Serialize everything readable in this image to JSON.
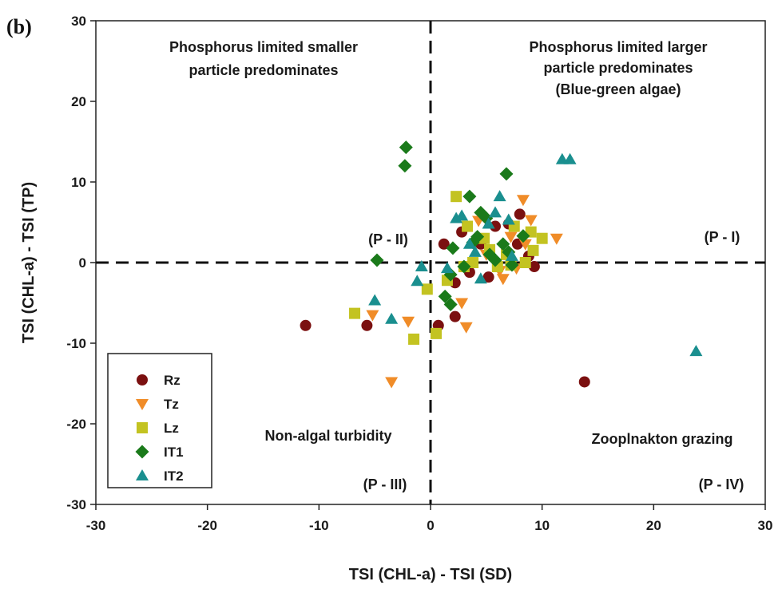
{
  "chart_data": {
    "type": "scatter",
    "panel_label": "(b)",
    "xlabel": "TSI (CHL-a) - TSI (SD)",
    "ylabel": "TSI (CHL-a) - TSI (TP)",
    "xlim": [
      -30,
      30
    ],
    "ylim": [
      -30,
      30
    ],
    "xticks": [
      -30,
      -20,
      -10,
      0,
      10,
      20,
      30
    ],
    "yticks": [
      -30,
      -20,
      -10,
      0,
      10,
      20,
      30
    ],
    "xtick_labels": [
      "-30",
      "-20",
      "-10",
      "0",
      "10",
      "20",
      "30"
    ],
    "ytick_labels": [
      "-30",
      "-20",
      "-10",
      "0",
      "10",
      "20",
      "30"
    ],
    "reference_lines": {
      "x": 0,
      "y": 0,
      "style": "dashed"
    },
    "annotations": {
      "q2_desc_line1": "Phosphorus limited smaller",
      "q2_desc_line2": "particle predominates",
      "q1_desc_line1": "Phosphorus limited larger",
      "q1_desc_line2": "particle predominates",
      "q1_desc_line3": "(Blue-green algae)",
      "q2_label": "(P - II)",
      "q1_label": "(P - I)",
      "q3_desc": "Non-algal turbidity",
      "q4_desc": "Zooplnakton grazing",
      "q3_label": "(P - III)",
      "q4_label": "(P - IV)"
    },
    "legend_position": "bottom-left",
    "series": [
      {
        "name": "Rz",
        "marker": "circle",
        "color": "#7b1010",
        "points": [
          [
            -11.2,
            -7.8
          ],
          [
            -5.7,
            -7.8
          ],
          [
            0.7,
            -7.8
          ],
          [
            1.2,
            2.3
          ],
          [
            2.2,
            -2.5
          ],
          [
            2.2,
            -6.7
          ],
          [
            2.8,
            3.8
          ],
          [
            3.5,
            -1.2
          ],
          [
            4.5,
            2.3
          ],
          [
            5.2,
            -1.8
          ],
          [
            5.8,
            4.5
          ],
          [
            7,
            4.8
          ],
          [
            7.8,
            2.3
          ],
          [
            8,
            6
          ],
          [
            8.8,
            0.8
          ],
          [
            9.3,
            -0.5
          ],
          [
            13.8,
            -14.8
          ]
        ]
      },
      {
        "name": "Tz",
        "marker": "triangle-down",
        "color": "#f08c28",
        "points": [
          [
            -5.2,
            -6.5
          ],
          [
            -2,
            -7.3
          ],
          [
            -3.5,
            -14.8
          ],
          [
            2.8,
            -5
          ],
          [
            3.2,
            -8
          ],
          [
            4.3,
            5.2
          ],
          [
            5,
            1
          ],
          [
            6.2,
            -1
          ],
          [
            6.5,
            -2
          ],
          [
            7.2,
            3.2
          ],
          [
            7.7,
            -0.7
          ],
          [
            8.3,
            7.8
          ],
          [
            8.5,
            2.3
          ],
          [
            9,
            5.3
          ],
          [
            11.3,
            3
          ]
        ]
      },
      {
        "name": "Lz",
        "marker": "square",
        "color": "#c3c321",
        "points": [
          [
            -6.8,
            -6.3
          ],
          [
            -1.5,
            -9.5
          ],
          [
            -0.3,
            -3.3
          ],
          [
            0.5,
            -8.8
          ],
          [
            1.5,
            -2.2
          ],
          [
            2.3,
            8.2
          ],
          [
            3,
            -0.5
          ],
          [
            3.3,
            4.5
          ],
          [
            3.8,
            0
          ],
          [
            4.8,
            3
          ],
          [
            5.3,
            1.6
          ],
          [
            6,
            -0.5
          ],
          [
            6.8,
            1
          ],
          [
            7.2,
            -0.3
          ],
          [
            7.5,
            4.5
          ],
          [
            8.5,
            0
          ],
          [
            9,
            3.8
          ],
          [
            9.2,
            1.5
          ],
          [
            10,
            3
          ]
        ]
      },
      {
        "name": "IT1",
        "marker": "diamond",
        "color": "#1a7a1a",
        "points": [
          [
            -2.2,
            14.3
          ],
          [
            -2.3,
            12
          ],
          [
            -4.8,
            0.3
          ],
          [
            1.3,
            -4.2
          ],
          [
            1.8,
            -5.2
          ],
          [
            1.8,
            -1.5
          ],
          [
            2,
            1.8
          ],
          [
            3,
            -0.5
          ],
          [
            3.5,
            8.2
          ],
          [
            3.8,
            2.5
          ],
          [
            4.2,
            3.2
          ],
          [
            4.5,
            6.2
          ],
          [
            5,
            5.5
          ],
          [
            5.3,
            1
          ],
          [
            5.8,
            0.3
          ],
          [
            6.5,
            2.3
          ],
          [
            6.8,
            11
          ],
          [
            7,
            1.3
          ],
          [
            7.3,
            -0.3
          ],
          [
            8.3,
            3.3
          ]
        ]
      },
      {
        "name": "IT2",
        "marker": "triangle-up",
        "color": "#1a8f8f",
        "points": [
          [
            -5,
            -4.7
          ],
          [
            -3.5,
            -7
          ],
          [
            -1.2,
            -2.3
          ],
          [
            -0.8,
            -0.5
          ],
          [
            1.5,
            -0.7
          ],
          [
            2.3,
            5.5
          ],
          [
            2.8,
            5.8
          ],
          [
            3.5,
            2.3
          ],
          [
            4,
            1.3
          ],
          [
            4.5,
            -2
          ],
          [
            5.2,
            4.8
          ],
          [
            5.8,
            6.2
          ],
          [
            6.2,
            8.2
          ],
          [
            7,
            5.3
          ],
          [
            7.3,
            0.8
          ],
          [
            11.8,
            12.8
          ],
          [
            12.5,
            12.8
          ],
          [
            23.8,
            -11
          ]
        ]
      }
    ]
  }
}
